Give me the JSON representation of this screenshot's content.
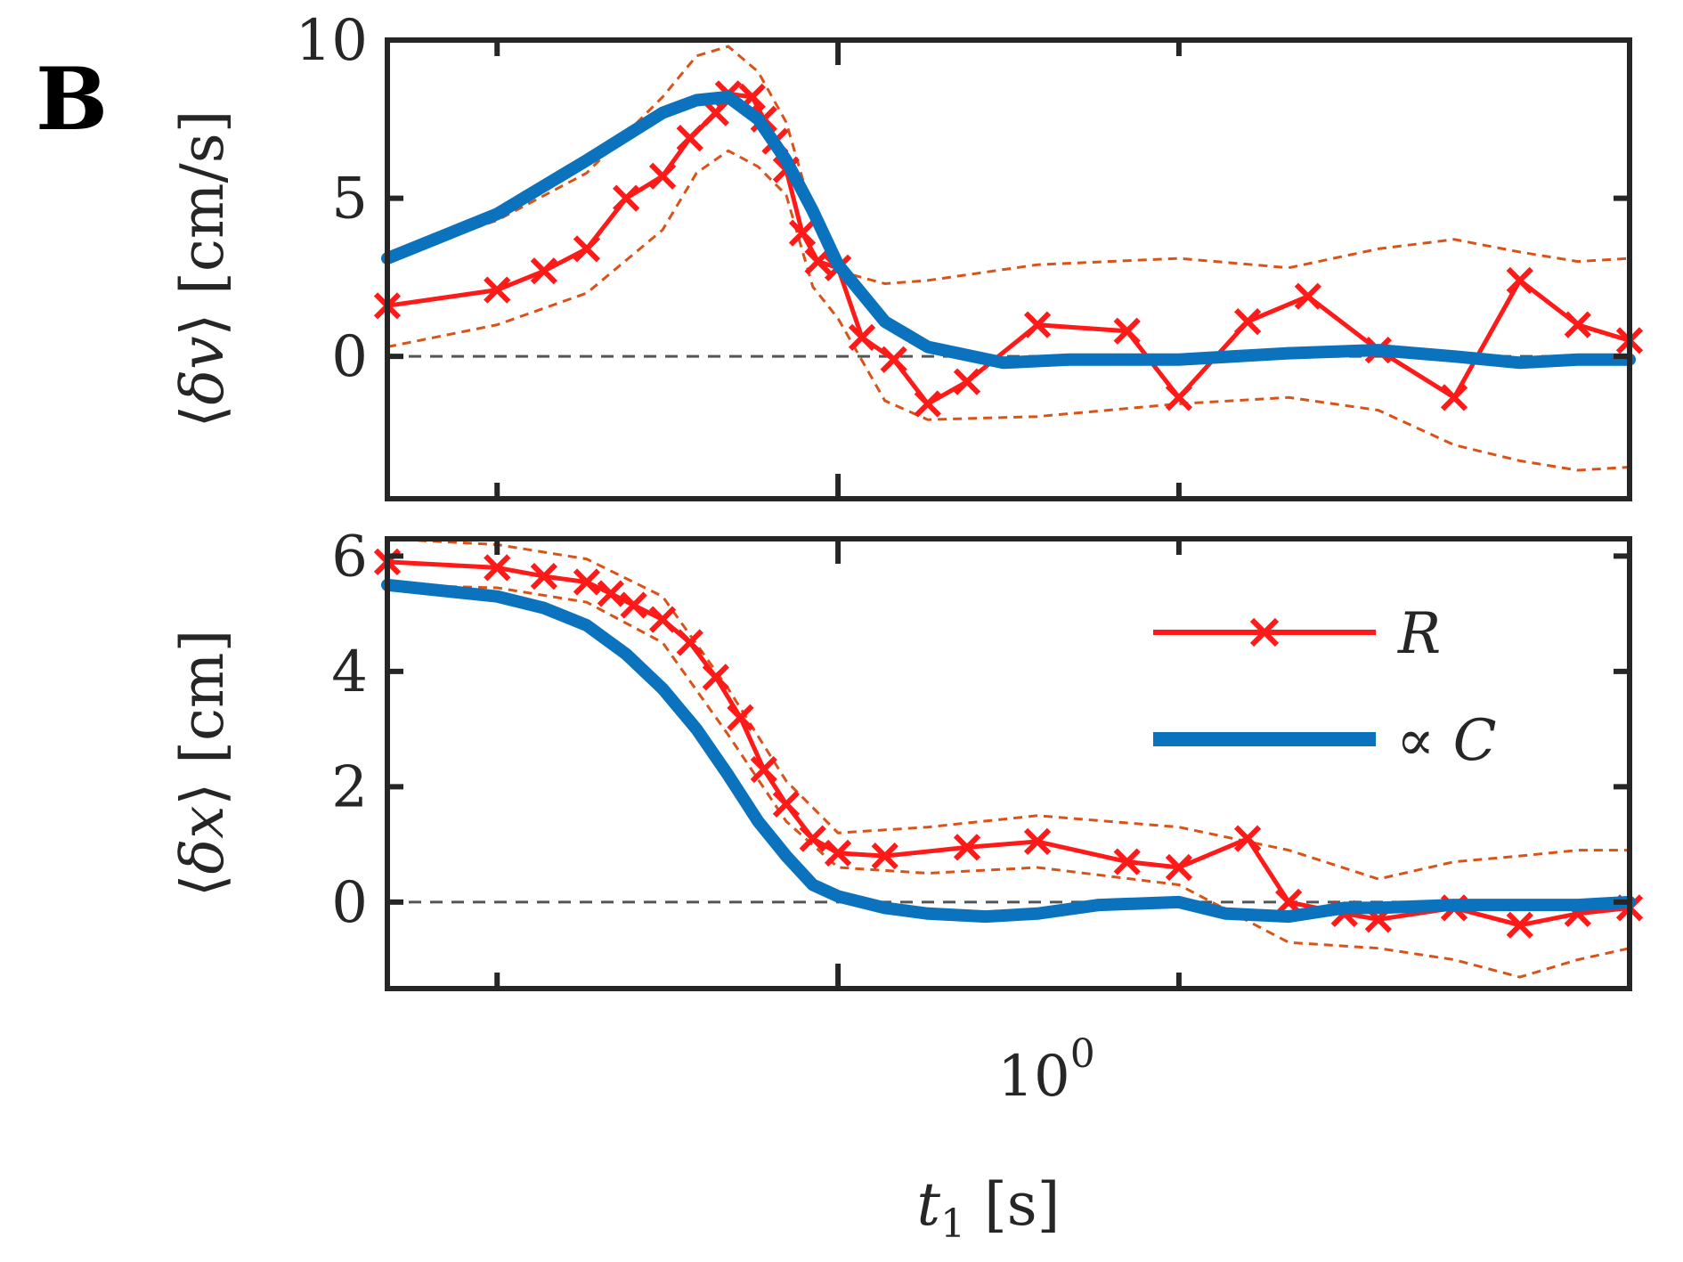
{
  "panel_label": "B",
  "colors": {
    "R": "#ff1a1a",
    "C": "#0b72bd",
    "band": "#d95319",
    "zero": "#555555",
    "axes": "#262626"
  },
  "legend": {
    "R_label": "R",
    "C_prefix": "∝ ",
    "C_label": "C"
  },
  "chart_data": [
    {
      "type": "line",
      "id": "velocity",
      "ylabel_open": "⟨",
      "ylabel_var": "δv",
      "ylabel_close": "⟩",
      "ylabel_unit": "[cm/s]",
      "xscale": "log",
      "xlim": [
        0.4,
        5.0
      ],
      "ylim": [
        -4.5,
        10
      ],
      "yticks": [
        0,
        5,
        10
      ],
      "ytick_labels": [
        "0",
        "5",
        "10"
      ],
      "grid": false,
      "zero_line": true,
      "series": [
        {
          "key": "R",
          "marker": "x",
          "x": [
            0.4,
            0.5,
            0.55,
            0.6,
            0.65,
            0.7,
            0.74,
            0.78,
            0.8,
            0.84,
            0.86,
            0.88,
            0.9,
            0.93,
            0.96,
            1.0,
            1.05,
            1.12,
            1.2,
            1.3,
            1.5,
            1.8,
            2.0,
            2.3,
            2.6,
            3.0,
            3.5,
            4.0,
            4.5,
            5.0
          ],
          "y": [
            1.6,
            2.1,
            2.7,
            3.4,
            5.0,
            5.7,
            6.9,
            7.7,
            8.3,
            8.2,
            7.5,
            6.8,
            5.9,
            3.9,
            3.0,
            2.8,
            0.6,
            -0.1,
            -1.5,
            -0.8,
            1.0,
            0.8,
            -1.3,
            1.1,
            1.9,
            0.2,
            -1.3,
            2.4,
            1.0,
            0.5
          ]
        },
        {
          "key": "C",
          "x": [
            0.4,
            0.5,
            0.6,
            0.7,
            0.75,
            0.8,
            0.85,
            0.9,
            0.95,
            1.0,
            1.1,
            1.2,
            1.4,
            1.6,
            1.8,
            2.0,
            2.5,
            3.0,
            3.5,
            4.0,
            4.5,
            5.0
          ],
          "y": [
            3.1,
            4.5,
            6.2,
            7.7,
            8.1,
            8.2,
            7.5,
            6.2,
            4.6,
            2.9,
            1.1,
            0.3,
            -0.2,
            -0.1,
            -0.1,
            -0.1,
            0.1,
            0.2,
            0.0,
            -0.2,
            -0.1,
            -0.1
          ]
        }
      ],
      "band": {
        "x": [
          0.4,
          0.5,
          0.6,
          0.7,
          0.75,
          0.8,
          0.85,
          0.9,
          0.95,
          1.0,
          1.1,
          1.2,
          1.5,
          2.0,
          2.5,
          3.0,
          3.5,
          4.0,
          4.5,
          5.0
        ],
        "lower": [
          0.3,
          1.0,
          2.0,
          4.0,
          5.8,
          6.5,
          6.0,
          5.1,
          2.2,
          1.2,
          -1.4,
          -2.0,
          -1.9,
          -1.5,
          -1.3,
          -1.7,
          -2.8,
          -3.3,
          -3.6,
          -3.5
        ],
        "upper": [
          3.1,
          4.3,
          5.8,
          8.2,
          9.5,
          9.8,
          9.0,
          7.4,
          4.5,
          2.7,
          2.3,
          2.4,
          2.9,
          3.1,
          2.8,
          3.4,
          3.7,
          3.3,
          3.0,
          3.1
        ]
      }
    },
    {
      "type": "line",
      "id": "position",
      "ylabel_open": "⟨",
      "ylabel_var": "δx",
      "ylabel_close": "⟩",
      "ylabel_unit": "[cm]",
      "xscale": "log",
      "xlim": [
        0.4,
        5.0
      ],
      "ylim": [
        -1.5,
        6.3
      ],
      "yticks": [
        0,
        2,
        4,
        6
      ],
      "ytick_labels": [
        "0",
        "2",
        "4",
        "6"
      ],
      "xtick_base": "10",
      "xtick_exp": "0",
      "xlabel_var": "t",
      "xlabel_sub": "1",
      "xlabel_unit": "[s]",
      "grid": false,
      "zero_line": true,
      "legend_position": "top-right",
      "series": [
        {
          "key": "R",
          "marker": "x",
          "x": [
            0.4,
            0.5,
            0.55,
            0.6,
            0.63,
            0.66,
            0.7,
            0.74,
            0.78,
            0.82,
            0.86,
            0.9,
            0.95,
            1.0,
            1.1,
            1.3,
            1.5,
            1.8,
            2.0,
            2.3,
            2.5,
            2.8,
            3.0,
            3.5,
            4.0,
            4.5,
            5.0
          ],
          "y": [
            5.9,
            5.8,
            5.65,
            5.55,
            5.35,
            5.15,
            4.9,
            4.5,
            3.9,
            3.2,
            2.3,
            1.7,
            1.1,
            0.85,
            0.8,
            0.95,
            1.05,
            0.7,
            0.6,
            1.1,
            0.0,
            -0.2,
            -0.3,
            -0.1,
            -0.4,
            -0.2,
            -0.1
          ]
        },
        {
          "key": "C",
          "x": [
            0.4,
            0.5,
            0.55,
            0.6,
            0.65,
            0.7,
            0.75,
            0.8,
            0.85,
            0.9,
            0.95,
            1.0,
            1.1,
            1.2,
            1.35,
            1.5,
            1.7,
            2.0,
            2.2,
            2.5,
            2.8,
            3.0,
            3.5,
            4.0,
            4.5,
            5.0
          ],
          "y": [
            5.5,
            5.3,
            5.1,
            4.8,
            4.3,
            3.7,
            3.0,
            2.2,
            1.4,
            0.8,
            0.3,
            0.1,
            -0.1,
            -0.2,
            -0.25,
            -0.2,
            -0.05,
            0.0,
            -0.2,
            -0.25,
            -0.1,
            -0.1,
            -0.05,
            -0.05,
            -0.05,
            0.0
          ]
        }
      ],
      "band": {
        "x": [
          0.4,
          0.5,
          0.6,
          0.7,
          0.8,
          0.9,
          1.0,
          1.2,
          1.5,
          2.0,
          2.5,
          3.0,
          3.5,
          4.0,
          4.5,
          5.0
        ],
        "lower": [
          5.5,
          5.45,
          5.2,
          4.5,
          2.9,
          1.4,
          0.6,
          0.5,
          0.6,
          0.3,
          -0.7,
          -0.8,
          -1.0,
          -1.3,
          -1.0,
          -0.8
        ],
        "upper": [
          6.3,
          6.2,
          5.95,
          5.3,
          3.7,
          2.1,
          1.2,
          1.3,
          1.5,
          1.3,
          0.9,
          0.4,
          0.7,
          0.8,
          0.9,
          0.9
        ]
      }
    }
  ]
}
